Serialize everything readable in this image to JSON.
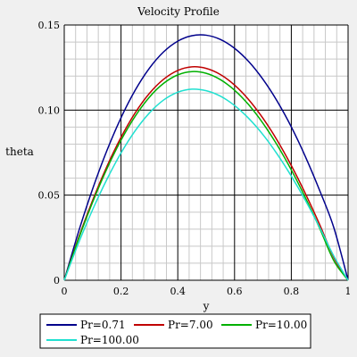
{
  "chart_data": {
    "type": "line",
    "title": "Velocity Profile",
    "xlabel": "y",
    "ylabel": "theta",
    "xlim": [
      0,
      1
    ],
    "ylim": [
      0,
      0.15
    ],
    "x_ticks": [
      "0",
      "0.2",
      "0.4",
      "0.6",
      "0.8",
      "1"
    ],
    "y_ticks": [
      "0",
      "0.05",
      "0.10",
      "0.15"
    ],
    "grid": true,
    "legend_position": "bottom",
    "x": [
      0,
      0.05,
      0.1,
      0.15,
      0.2,
      0.25,
      0.3,
      0.35,
      0.4,
      0.45,
      0.5,
      0.55,
      0.6,
      0.65,
      0.7,
      0.75,
      0.8,
      0.85,
      0.9,
      0.95,
      1.0
    ],
    "series": [
      {
        "name": "Pr=0.71",
        "color": "#00008b",
        "values": [
          0,
          0.0283,
          0.0537,
          0.0761,
          0.0955,
          0.1117,
          0.1246,
          0.1342,
          0.1405,
          0.1437,
          0.144,
          0.1415,
          0.1363,
          0.1285,
          0.1181,
          0.1053,
          0.0901,
          0.0725,
          0.0527,
          0.0308,
          0
        ]
      },
      {
        "name": "Pr=7.00",
        "color": "#c00000",
        "values": [
          0,
          0.0247,
          0.047,
          0.0668,
          0.084,
          0.0984,
          0.1098,
          0.1181,
          0.1233,
          0.1254,
          0.1245,
          0.1209,
          0.1147,
          0.1061,
          0.0952,
          0.0823,
          0.0674,
          0.0508,
          0.0327,
          0.0133,
          0
        ]
      },
      {
        "name": "Pr=10.00",
        "color": "#00b000",
        "values": [
          0,
          0.0241,
          0.0459,
          0.0654,
          0.0823,
          0.0964,
          0.1076,
          0.1157,
          0.1207,
          0.1226,
          0.1216,
          0.1179,
          0.1117,
          0.1031,
          0.0923,
          0.0795,
          0.0648,
          0.0484,
          0.0305,
          0.0114,
          0
        ]
      },
      {
        "name": "Pr=100.00",
        "color": "#20e0d0",
        "values": [
          0,
          0.0217,
          0.0415,
          0.0592,
          0.0748,
          0.0879,
          0.0983,
          0.1059,
          0.1105,
          0.1123,
          0.1114,
          0.1082,
          0.1027,
          0.0951,
          0.0856,
          0.0742,
          0.0612,
          0.0468,
          0.031,
          0.0141,
          0
        ]
      }
    ]
  }
}
